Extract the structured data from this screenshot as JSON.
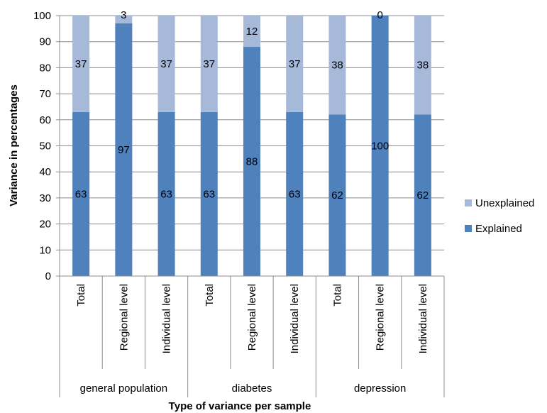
{
  "chart_data": {
    "type": "bar",
    "stacked": true,
    "xlabel": "Type of variance per sample",
    "ylabel": "Variance in percentages",
    "ylim": [
      0,
      100
    ],
    "yticks": [
      0,
      10,
      20,
      30,
      40,
      50,
      60,
      70,
      80,
      90,
      100
    ],
    "grid": true,
    "legend_position": "right",
    "groups": [
      {
        "label": "general population",
        "categories": [
          "Total",
          "Regional level",
          "Individual level"
        ]
      },
      {
        "label": "diabetes",
        "categories": [
          "Total",
          "Regional level",
          "Individual level"
        ]
      },
      {
        "label": "depression",
        "categories": [
          "Total",
          "Regional level",
          "Individual level"
        ]
      }
    ],
    "categories": [
      "Total",
      "Regional level",
      "Individual level",
      "Total",
      "Regional level",
      "Individual level",
      "Total",
      "Regional level",
      "Individual level"
    ],
    "series": [
      {
        "name": "Explained",
        "color": "#4f81bd",
        "values": [
          63,
          97,
          63,
          63,
          88,
          63,
          62,
          100,
          62
        ]
      },
      {
        "name": "Unexplained",
        "color": "#a7b9d9",
        "values": [
          37,
          3,
          37,
          37,
          12,
          37,
          38,
          0,
          38
        ]
      }
    ]
  }
}
